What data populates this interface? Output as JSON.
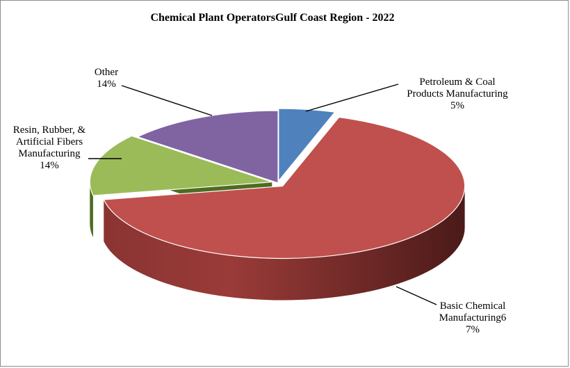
{
  "chart_data": {
    "type": "pie",
    "title": "Chemical Plant OperatorsGulf Coast Region - 2022",
    "slices": [
      {
        "label_lines": [
          "Petroleum & Coal",
          "Products Manufacturing",
          "5%"
        ],
        "value": 5,
        "color": "#4f81bd"
      },
      {
        "label_lines": [
          "Basic Chemical",
          "Manufacturing6",
          "7%"
        ],
        "value": 67,
        "color": "#c0504d"
      },
      {
        "label_lines": [
          "Resin, Rubber, &",
          "Artificial Fibers",
          "Manufacturing",
          "14%"
        ],
        "value": 14,
        "color": "#9bbb59"
      },
      {
        "label_lines": [
          "Other",
          "14%"
        ],
        "value": 14,
        "color": "#8064a2"
      }
    ],
    "legend": "none",
    "style": "3d-pie-exploded"
  }
}
